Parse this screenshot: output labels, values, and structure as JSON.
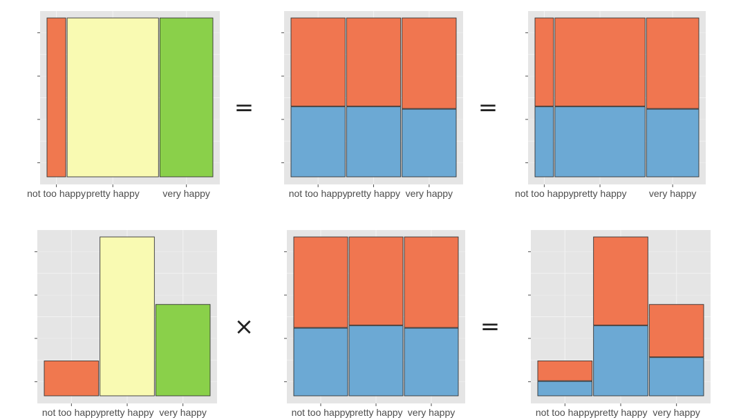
{
  "chart_data": [
    {
      "type": "bar",
      "subtype": "mosaic",
      "title": "",
      "categories": [
        "not too happy",
        "pretty happy",
        "very happy"
      ],
      "widths": [
        0.115,
        0.56,
        0.325
      ],
      "series": [
        {
          "values": [
            1.0,
            1.0,
            1.0
          ],
          "color_by_category": [
            "#F0784F",
            "#F9FAB2",
            "#8AD04A"
          ]
        }
      ],
      "ylim": [
        0,
        1
      ],
      "grid": true
    },
    {
      "type": "bar",
      "subtype": "stacked-proportion",
      "title": "",
      "categories": [
        "not too happy",
        "pretty happy",
        "very happy"
      ],
      "series": [
        {
          "values": [
            0.445,
            0.445,
            0.43
          ],
          "color": "#6CA9D4"
        },
        {
          "values": [
            0.555,
            0.555,
            0.57
          ],
          "color": "#F07650"
        }
      ],
      "ylim": [
        0,
        1
      ],
      "grid": true
    },
    {
      "type": "bar",
      "subtype": "mosaic",
      "title": "",
      "categories": [
        "not too happy",
        "pretty happy",
        "very happy"
      ],
      "widths": [
        0.115,
        0.56,
        0.325
      ],
      "series": [
        {
          "values": [
            0.445,
            0.445,
            0.43
          ],
          "color": "#6CA9D4"
        },
        {
          "values": [
            0.555,
            0.555,
            0.57
          ],
          "color": "#F07650"
        }
      ],
      "ylim": [
        0,
        1
      ],
      "grid": true
    },
    {
      "type": "bar",
      "title": "",
      "categories": [
        "not too happy",
        "pretty happy",
        "very happy"
      ],
      "series": [
        {
          "values": [
            0.22,
            1.0,
            0.575
          ],
          "color_by_category": [
            "#F0784F",
            "#F9FAB2",
            "#8AD04A"
          ]
        }
      ],
      "ylim": [
        0,
        1
      ],
      "grid": true
    },
    {
      "type": "bar",
      "subtype": "stacked-proportion",
      "title": "",
      "categories": [
        "not too happy",
        "pretty happy",
        "very happy"
      ],
      "series": [
        {
          "values": [
            0.43,
            0.445,
            0.43
          ],
          "color": "#6CA9D4"
        },
        {
          "values": [
            0.57,
            0.555,
            0.57
          ],
          "color": "#F07650"
        }
      ],
      "ylim": [
        0,
        1
      ],
      "grid": true
    },
    {
      "type": "bar",
      "subtype": "stacked",
      "title": "",
      "categories": [
        "not too happy",
        "pretty happy",
        "very happy"
      ],
      "series": [
        {
          "values": [
            0.095,
            0.445,
            0.245
          ],
          "color": "#6CA9D4"
        },
        {
          "values": [
            0.125,
            0.555,
            0.33
          ],
          "color": "#F07650"
        }
      ],
      "ylim": [
        0,
        1
      ],
      "grid": true
    }
  ],
  "operators": {
    "top_left": "=",
    "top_right": "=",
    "bottom_left": "×",
    "bottom_right": "="
  }
}
